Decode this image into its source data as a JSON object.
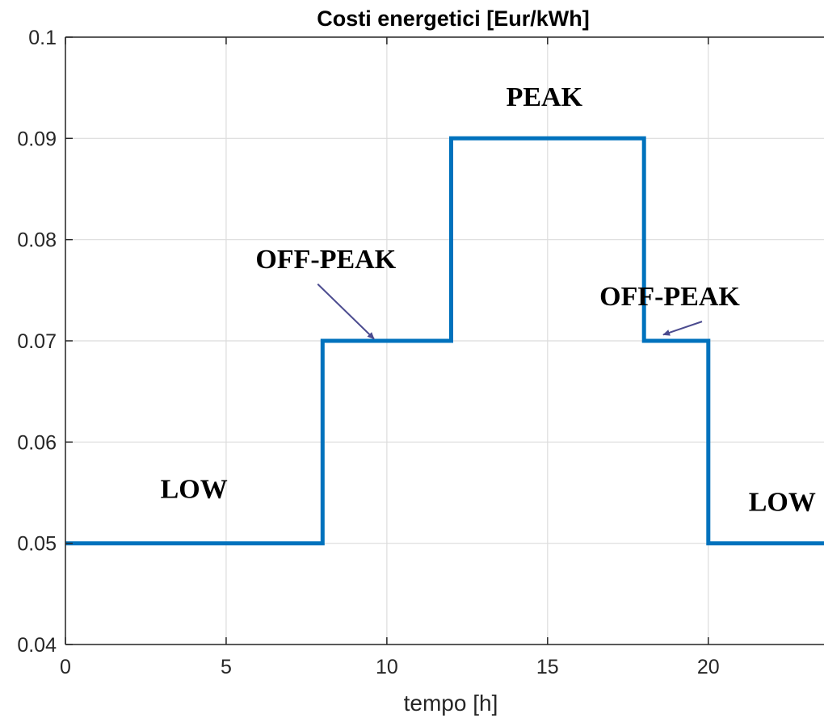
{
  "chart_data": {
    "type": "line",
    "title": "Costi energetici [Eur/kWh]",
    "xlabel": "tempo [h]",
    "ylabel": "",
    "xlim": [
      0,
      23.6
    ],
    "ylim": [
      0.04,
      0.1
    ],
    "xticks": [
      0,
      5,
      10,
      15,
      20
    ],
    "xtick_labels": [
      "0",
      "5",
      "10",
      "15",
      "20"
    ],
    "yticks": [
      0.04,
      0.05,
      0.06,
      0.07,
      0.08,
      0.09,
      0.1
    ],
    "ytick_labels": [
      "0.04",
      "0.05",
      "0.06",
      "0.07",
      "0.08",
      "0.09",
      "0.1"
    ],
    "grid": true,
    "series": [
      {
        "color": "#0072BD",
        "step": true,
        "x": [
          0,
          8,
          8,
          12,
          12,
          18,
          18,
          20,
          20,
          23.6
        ],
        "y": [
          0.05,
          0.05,
          0.07,
          0.07,
          0.09,
          0.09,
          0.07,
          0.07,
          0.05,
          0.05
        ]
      }
    ],
    "annotations": [
      {
        "text": "LOW",
        "x": 4,
        "y": 0.0545
      },
      {
        "text": "OFF-PEAK",
        "x": 8.1,
        "y": 0.0772,
        "arrow_to": [
          9.6,
          0.0702
        ]
      },
      {
        "text": "PEAK",
        "x": 14.9,
        "y": 0.0932
      },
      {
        "text": "OFF-PEAK",
        "x": 18.8,
        "y": 0.0735,
        "arrow_to": [
          18.6,
          0.0706
        ]
      },
      {
        "text": "LOW",
        "x": 22.3,
        "y": 0.0532
      }
    ],
    "arrow_color": "#4b4b8f"
  }
}
